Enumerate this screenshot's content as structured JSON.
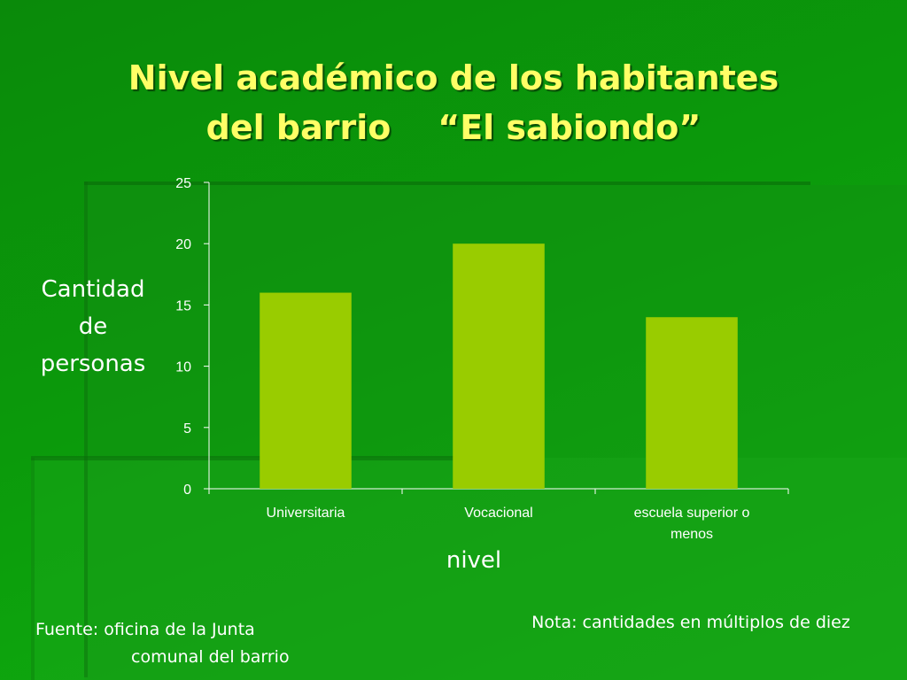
{
  "slide": {
    "title": "Nivel académico de los habitantes\ndel barrio    “El sabiondo”",
    "ylabel_lines": [
      "Cantidad",
      "de",
      "personas"
    ],
    "xlabel": "nivel",
    "source_lines": [
      "Fuente: oficina de la Junta",
      "comunal del barrio"
    ],
    "note": "Nota: cantidades en múltiplos de diez"
  },
  "colors": {
    "bar": "#99cc00",
    "title": "#ffff66",
    "axis": "#ffffff"
  },
  "chart_data": {
    "type": "bar",
    "title": "Nivel académico de los habitantes del barrio “El sabiondo”",
    "xlabel": "nivel",
    "ylabel": "Cantidad de personas",
    "categories": [
      "Universitaria",
      "Vocacional",
      "escuela superior o menos"
    ],
    "category_label_lines": [
      [
        "Universitaria"
      ],
      [
        "Vocacional"
      ],
      [
        "escuela superior o",
        "menos"
      ]
    ],
    "values": [
      16,
      20,
      14
    ],
    "ylim": [
      0,
      25
    ],
    "yticks": [
      0,
      5,
      10,
      15,
      20,
      25
    ],
    "grid": false,
    "legend": "none"
  }
}
